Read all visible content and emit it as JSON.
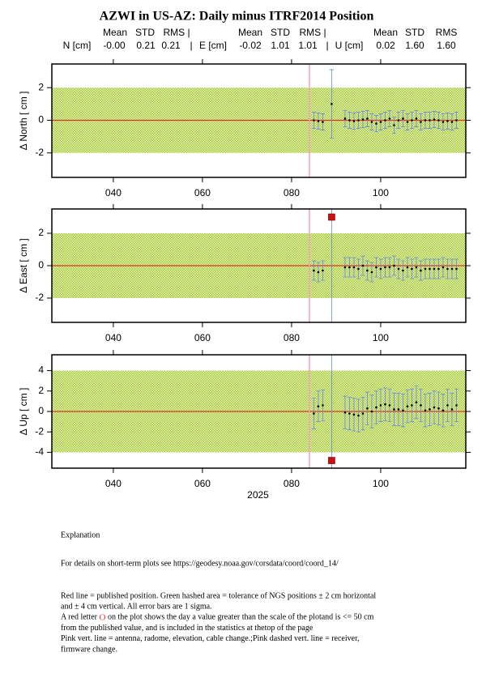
{
  "title": "AZWI in US-AZ: Daily minus ITRF2014 Position",
  "stats_header": [
    [
      "Mean",
      "STD",
      "RMS |"
    ],
    [
      "Mean",
      "STD",
      "RMS |"
    ],
    [
      "Mean",
      "STD",
      "RMS"
    ]
  ],
  "stats": [
    {
      "component": "N [cm]",
      "mean": "-0.00",
      "std": "0.21",
      "rms": "0.21"
    },
    {
      "component": "E [cm]",
      "mean": "-0.02",
      "std": "1.01",
      "rms": "1.01"
    },
    {
      "component": "U [cm]",
      "mean": "0.02",
      "std": "1.60",
      "rms": "1.60"
    }
  ],
  "separator": "|",
  "chart_data": [
    {
      "type": "errorbar",
      "ylabel": "Δ North  [ cm ]",
      "x": [
        85,
        86,
        87,
        89,
        92,
        93,
        94,
        95,
        96,
        97,
        98,
        99,
        100,
        101,
        102,
        103,
        104,
        105,
        106,
        107,
        108,
        109,
        110,
        111,
        112,
        113,
        114,
        115,
        116,
        117
      ],
      "values": [
        0.0,
        -0.05,
        -0.1,
        1.0,
        0.1,
        0.0,
        -0.05,
        0.0,
        0.05,
        0.1,
        -0.1,
        -0.2,
        -0.1,
        0.0,
        0.1,
        -0.3,
        0.0,
        0.1,
        -0.1,
        0.0,
        0.1,
        -0.1,
        0.0,
        0.0,
        0.05,
        0.0,
        -0.1,
        -0.05,
        -0.1,
        0.0
      ],
      "errors": [
        0.5,
        0.5,
        0.5,
        2.1,
        0.5,
        0.5,
        0.5,
        0.5,
        0.5,
        0.5,
        0.5,
        0.5,
        0.5,
        0.5,
        0.5,
        0.5,
        0.5,
        0.5,
        0.5,
        0.5,
        0.5,
        0.5,
        0.5,
        0.5,
        0.5,
        0.5,
        0.5,
        0.5,
        0.5,
        0.5
      ],
      "out_of_scale": [],
      "xlim": [
        26.2,
        119.1
      ],
      "xticks": [
        {
          "value": 40,
          "label": "040"
        },
        {
          "value": 60,
          "label": "060"
        },
        {
          "value": 80,
          "label": "080"
        },
        {
          "value": 100,
          "label": "100"
        }
      ],
      "ylim": [
        -3.5,
        3.45
      ],
      "yticks": [
        -2,
        0,
        2
      ],
      "tolerance": 2,
      "reference": 0,
      "change_line": 84
    },
    {
      "type": "errorbar",
      "ylabel": "Δ East  [ cm ]",
      "x": [
        85,
        86,
        87,
        89,
        92,
        93,
        94,
        95,
        96,
        97,
        98,
        99,
        100,
        101,
        102,
        103,
        104,
        105,
        106,
        107,
        108,
        109,
        110,
        111,
        112,
        113,
        114,
        115,
        116,
        117
      ],
      "values": [
        -0.3,
        -0.4,
        -0.3,
        null,
        -0.1,
        -0.1,
        -0.1,
        -0.2,
        0.0,
        -0.3,
        -0.4,
        -0.1,
        -0.2,
        -0.1,
        -0.1,
        0.0,
        -0.2,
        -0.3,
        -0.1,
        -0.2,
        -0.1,
        -0.3,
        -0.2,
        -0.2,
        -0.2,
        -0.2,
        -0.1,
        -0.2,
        -0.2,
        -0.2
      ],
      "errors": [
        0.6,
        0.6,
        0.6,
        null,
        0.6,
        0.6,
        0.6,
        0.6,
        0.6,
        0.6,
        0.6,
        0.6,
        0.6,
        0.6,
        0.6,
        0.6,
        0.6,
        0.6,
        0.6,
        0.6,
        0.6,
        0.6,
        0.6,
        0.6,
        0.6,
        0.6,
        0.6,
        0.6,
        0.6,
        0.6
      ],
      "out_of_scale": [
        {
          "x": 89,
          "y": 3
        }
      ],
      "xlim": [
        26.2,
        119.1
      ],
      "xticks": [
        {
          "value": 40,
          "label": "040"
        },
        {
          "value": 60,
          "label": "060"
        },
        {
          "value": 80,
          "label": "080"
        },
        {
          "value": 100,
          "label": "100"
        }
      ],
      "ylim": [
        -3.5,
        3.5
      ],
      "yticks": [
        -2,
        0,
        2
      ],
      "tolerance": 2,
      "reference": 0,
      "change_line": 84
    },
    {
      "type": "errorbar",
      "ylabel": "Δ Up  [ cm ]",
      "xlabel": "2025",
      "x": [
        85,
        86,
        87,
        89,
        92,
        93,
        94,
        95,
        96,
        97,
        98,
        99,
        100,
        101,
        102,
        103,
        104,
        105,
        106,
        107,
        108,
        109,
        110,
        111,
        112,
        113,
        114,
        115,
        116,
        117
      ],
      "values": [
        -0.2,
        0.5,
        0.6,
        null,
        -0.1,
        -0.2,
        -0.3,
        -0.4,
        -0.2,
        0.3,
        0.0,
        0.4,
        0.6,
        0.7,
        0.6,
        0.2,
        0.2,
        0.1,
        0.5,
        0.6,
        0.9,
        0.6,
        0.1,
        0.2,
        0.4,
        0.3,
        0.1,
        0.6,
        0.2,
        0.6
      ],
      "errors": [
        1.5,
        1.5,
        1.5,
        null,
        1.6,
        1.6,
        1.6,
        1.6,
        1.6,
        1.6,
        1.6,
        1.6,
        1.6,
        1.6,
        1.6,
        1.6,
        1.6,
        1.6,
        1.6,
        1.6,
        1.6,
        1.6,
        1.6,
        1.6,
        1.6,
        1.6,
        1.6,
        1.6,
        1.6,
        1.6
      ],
      "out_of_scale": [
        {
          "x": 89,
          "y": -4.8
        }
      ],
      "xlim": [
        26.2,
        119.1
      ],
      "xticks": [
        {
          "value": 40,
          "label": "040"
        },
        {
          "value": 60,
          "label": "060"
        },
        {
          "value": 80,
          "label": "080"
        },
        {
          "value": 100,
          "label": "100"
        }
      ],
      "ylim": [
        -5.55,
        5.55
      ],
      "yticks": [
        -4,
        -2,
        0,
        2,
        4
      ],
      "tolerance": 4,
      "reference": 0,
      "change_line": 84
    }
  ],
  "explanation": {
    "heading": "Explanation",
    "details": "For details on short-term plots see https://geodesy.noaa.gov/corsdata/coord/coord_14/",
    "lines": [
      "Red line = published position.  Green hashed area = tolerance of NGS positions ± 2 cm horizontal",
      "and ± 4 cm vertical.  All error bars are 1 sigma."
    ],
    "red_letter": {
      "before": "A red letter ",
      "letter": "O",
      "after": " on the plot shows the day a value greater than the scale of the plotand is <= 50 cm"
    },
    "lines2": [
      "from the published value, and is included in the statistics at thetop of the page",
      "Pink vert. line = antenna, radome, elevation, cable change.;Pink dashed vert. line = receiver,",
      "firmware change."
    ]
  }
}
